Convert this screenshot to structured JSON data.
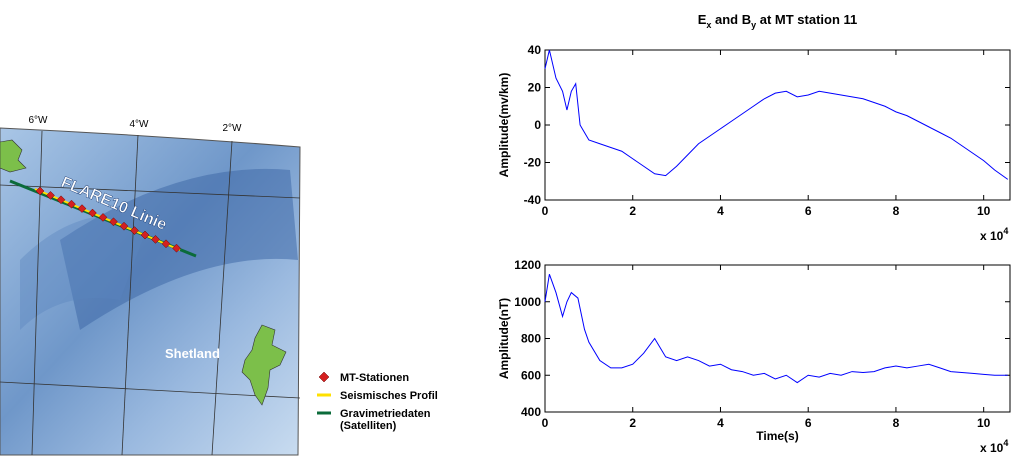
{
  "map": {
    "longitudes": [
      "6°W",
      "4°W",
      "2°W"
    ],
    "line_label": "FLARE10 Linie",
    "place_label": "Shetland",
    "legend": [
      {
        "lines": [
          "MT-Stationen"
        ],
        "color": "#d42020"
      },
      {
        "lines": [
          "Seismisches Profil"
        ],
        "color": "#ffe000"
      },
      {
        "lines": [
          "Gravimetriedaten",
          "(Satelliten)"
        ],
        "color": "#0b6b3a"
      }
    ]
  },
  "chart_data": [
    {
      "type": "line",
      "title": [
        "E",
        "x",
        " and B",
        "y",
        " at MT station 11"
      ],
      "ylabel": "Amplitude(mv/km)",
      "x_scale": [
        "x 10",
        "4"
      ],
      "x": [
        0,
        0.1,
        0.25,
        0.4,
        0.5,
        0.6,
        0.7,
        0.8,
        1.0,
        1.25,
        1.5,
        1.75,
        2.0,
        2.25,
        2.5,
        2.75,
        3.0,
        3.25,
        3.5,
        3.75,
        4.0,
        4.25,
        4.5,
        4.75,
        5.0,
        5.25,
        5.5,
        5.75,
        6.0,
        6.25,
        6.5,
        6.75,
        7.0,
        7.25,
        7.5,
        7.75,
        8.0,
        8.25,
        8.5,
        8.75,
        9.0,
        9.25,
        9.5,
        9.75,
        10.0,
        10.25,
        10.55
      ],
      "series": [
        {
          "color": "#0000ff",
          "values": [
            30,
            40,
            25,
            18,
            8,
            18,
            22,
            0,
            -8,
            -10,
            -12,
            -14,
            -18,
            -22,
            -26,
            -27,
            -22,
            -16,
            -10,
            -6,
            -2,
            2,
            6,
            10,
            14,
            17,
            18,
            15,
            16,
            18,
            17,
            16,
            15,
            14,
            12,
            10,
            7,
            5,
            2,
            -1,
            -4,
            -7,
            -11,
            -15,
            -19,
            -24,
            -29
          ]
        }
      ],
      "xlim": [
        0,
        10.6
      ],
      "xticks": [
        0,
        2,
        4,
        6,
        8,
        10
      ],
      "ylim": [
        -40,
        40
      ],
      "yticks": [
        -40,
        -20,
        0,
        20,
        40
      ],
      "grid": false
    },
    {
      "type": "line",
      "xlabel": "Time(s)",
      "ylabel": "Amplitude(nT)",
      "x_scale": [
        "x 10",
        "4"
      ],
      "x": [
        0,
        0.1,
        0.25,
        0.4,
        0.5,
        0.6,
        0.75,
        0.9,
        1.0,
        1.25,
        1.5,
        1.75,
        2.0,
        2.25,
        2.5,
        2.75,
        3.0,
        3.25,
        3.5,
        3.75,
        4.0,
        4.25,
        4.5,
        4.75,
        5.0,
        5.25,
        5.5,
        5.75,
        6.0,
        6.25,
        6.5,
        6.75,
        7.0,
        7.25,
        7.5,
        7.75,
        8.0,
        8.25,
        8.5,
        8.75,
        9.0,
        9.25,
        9.5,
        9.75,
        10.0,
        10.25,
        10.55
      ],
      "series": [
        {
          "color": "#0000ff",
          "values": [
            1000,
            1150,
            1050,
            920,
            1000,
            1050,
            1020,
            850,
            780,
            680,
            640,
            640,
            660,
            720,
            800,
            700,
            680,
            700,
            680,
            650,
            660,
            630,
            620,
            600,
            610,
            580,
            600,
            560,
            600,
            590,
            610,
            600,
            620,
            615,
            620,
            640,
            650,
            640,
            650,
            660,
            640,
            620,
            615,
            610,
            605,
            600,
            600
          ]
        }
      ],
      "xlim": [
        0,
        10.6
      ],
      "xticks": [
        0,
        2,
        4,
        6,
        8,
        10
      ],
      "ylim": [
        400,
        1200
      ],
      "yticks": [
        400,
        600,
        800,
        1000,
        1200
      ],
      "grid": false
    }
  ]
}
